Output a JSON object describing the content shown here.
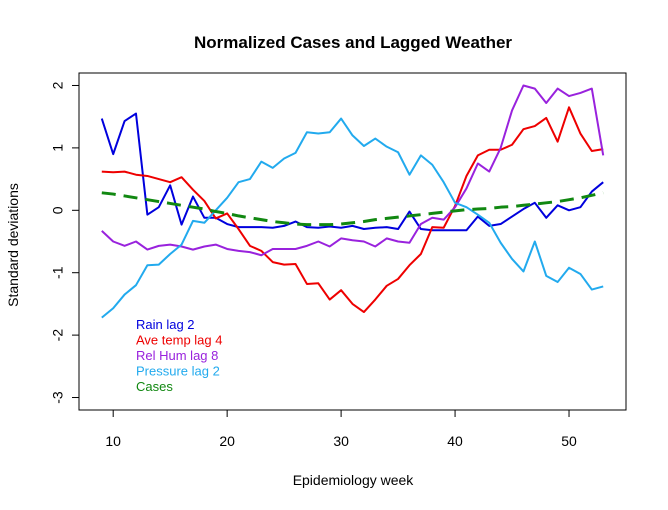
{
  "chart_data": {
    "type": "line",
    "title": "Normalized Cases and Lagged Weather",
    "xlabel": "Epidemiology week",
    "ylabel": "Standard deviations",
    "xlim": [
      7,
      55
    ],
    "ylim": [
      -3.2,
      2.2
    ],
    "xticks": [
      10,
      20,
      30,
      40,
      50
    ],
    "yticks": [
      -3,
      -2,
      -1,
      0,
      1,
      2
    ],
    "legend_position": "bottom-left",
    "x": [
      9,
      10,
      11,
      12,
      13,
      14,
      15,
      16,
      17,
      18,
      19,
      20,
      21,
      22,
      23,
      24,
      25,
      26,
      27,
      28,
      29,
      30,
      31,
      32,
      33,
      34,
      35,
      36,
      37,
      38,
      39,
      40,
      41,
      42,
      43,
      44,
      45,
      46,
      47,
      48,
      49,
      50,
      51,
      52,
      53
    ],
    "series": [
      {
        "name": "Rain lag 2",
        "color": "#0000dd",
        "style": "solid",
        "values": [
          1.47,
          0.9,
          1.43,
          1.55,
          -0.07,
          0.05,
          0.4,
          -0.23,
          0.22,
          -0.12,
          -0.12,
          -0.22,
          -0.27,
          -0.27,
          -0.27,
          -0.28,
          -0.25,
          -0.18,
          -0.27,
          -0.28,
          -0.26,
          -0.28,
          -0.25,
          -0.3,
          -0.28,
          -0.27,
          -0.3,
          -0.02,
          -0.3,
          -0.32,
          -0.32,
          -0.32,
          -0.32,
          -0.1,
          -0.25,
          -0.22,
          -0.1,
          0.02,
          0.12,
          -0.12,
          0.08,
          0.0,
          0.05,
          0.3,
          0.45
        ]
      },
      {
        "name": "Ave temp lag 4",
        "color": "#ee0000",
        "style": "solid",
        "values": [
          0.62,
          0.61,
          0.62,
          0.57,
          0.55,
          0.5,
          0.45,
          0.53,
          0.33,
          0.15,
          -0.13,
          -0.05,
          -0.3,
          -0.57,
          -0.65,
          -0.83,
          -0.87,
          -0.86,
          -1.18,
          -1.17,
          -1.43,
          -1.28,
          -1.5,
          -1.63,
          -1.43,
          -1.21,
          -1.1,
          -0.88,
          -0.7,
          -0.27,
          -0.28,
          0.07,
          0.55,
          0.88,
          0.97,
          0.97,
          1.05,
          1.3,
          1.35,
          1.48,
          1.1,
          1.65,
          1.23,
          0.95,
          0.98
        ]
      },
      {
        "name": "Rel Hum lag 8",
        "color": "#9922dd",
        "style": "solid",
        "values": [
          -0.33,
          -0.5,
          -0.57,
          -0.5,
          -0.63,
          -0.57,
          -0.55,
          -0.58,
          -0.63,
          -0.58,
          -0.55,
          -0.62,
          -0.65,
          -0.67,
          -0.72,
          -0.62,
          -0.62,
          -0.62,
          -0.57,
          -0.5,
          -0.58,
          -0.45,
          -0.48,
          -0.5,
          -0.58,
          -0.45,
          -0.5,
          -0.52,
          -0.22,
          -0.12,
          -0.15,
          0.05,
          0.35,
          0.75,
          0.62,
          1.0,
          1.6,
          2.0,
          1.95,
          1.72,
          1.95,
          1.83,
          1.88,
          1.95,
          0.88
        ]
      },
      {
        "name": "Pressure lag 2",
        "color": "#22aaee",
        "style": "solid",
        "values": [
          -1.72,
          -1.57,
          -1.35,
          -1.2,
          -0.88,
          -0.87,
          -0.7,
          -0.55,
          -0.17,
          -0.2,
          0.0,
          0.2,
          0.45,
          0.5,
          0.78,
          0.68,
          0.83,
          0.92,
          1.25,
          1.23,
          1.25,
          1.47,
          1.2,
          1.03,
          1.15,
          1.02,
          0.93,
          0.57,
          0.88,
          0.73,
          0.45,
          0.12,
          0.05,
          -0.07,
          -0.2,
          -0.52,
          -0.78,
          -0.98,
          -0.5,
          -1.05,
          -1.15,
          -0.92,
          -1.02,
          -1.27,
          -1.22
        ]
      },
      {
        "name": "Cases",
        "color": "#118811",
        "style": "dashed",
        "values": [
          0.28,
          0.26,
          0.23,
          0.2,
          0.17,
          0.14,
          0.11,
          0.08,
          0.05,
          0.02,
          -0.02,
          -0.05,
          -0.09,
          -0.12,
          -0.15,
          -0.18,
          -0.2,
          -0.22,
          -0.23,
          -0.23,
          -0.23,
          -0.22,
          -0.2,
          -0.18,
          -0.15,
          -0.13,
          -0.11,
          -0.09,
          -0.07,
          -0.05,
          -0.03,
          -0.01,
          0.01,
          0.02,
          0.03,
          0.05,
          0.06,
          0.08,
          0.1,
          0.12,
          0.14,
          0.17,
          0.2,
          0.24,
          0.28
        ]
      }
    ]
  }
}
